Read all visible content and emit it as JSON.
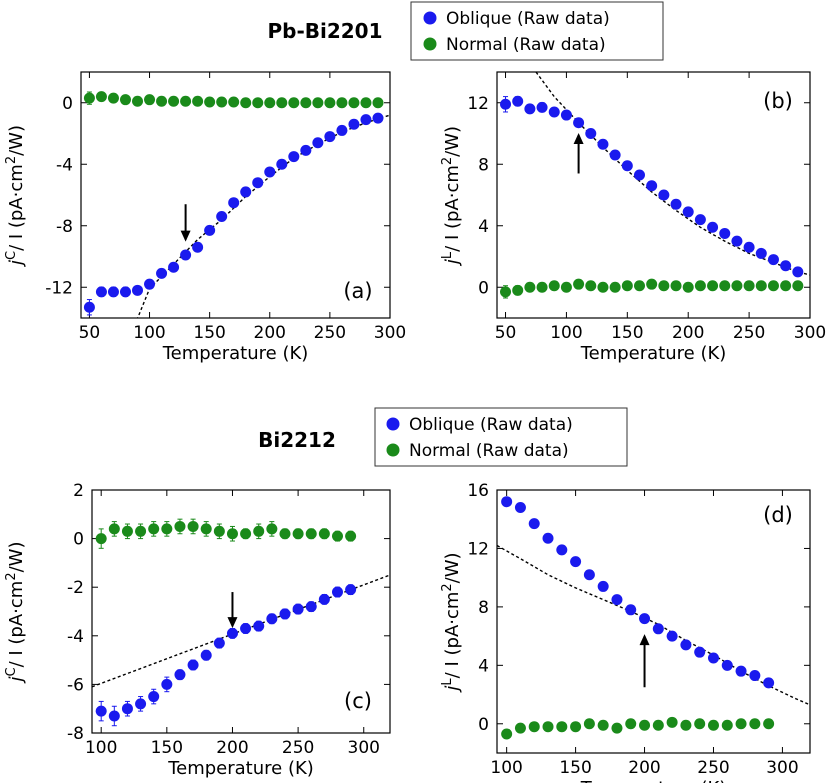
{
  "headers": [
    {
      "title": "Pb-Bi2201"
    },
    {
      "title": "Bi2212"
    }
  ],
  "legend": {
    "oblique_label": "Oblique (Raw data)",
    "normal_label": "Normal (Raw data)",
    "oblique_color": "#1a1aee",
    "normal_color": "#1a8a1a"
  },
  "chart_data": [
    {
      "type": "scatter",
      "panel_label": "(a)",
      "xlabel": "Temperature (K)",
      "ylabel_main": "j",
      "ylabel_sup": "C",
      "ylabel_rest": "/ I  (pA·cm",
      "ylabel_sup2": "2",
      "ylabel_end": "/W)",
      "xlim": [
        43,
        300
      ],
      "ylim": [
        -14,
        2
      ],
      "xticks": [
        50,
        100,
        150,
        200,
        250,
        300
      ],
      "yticks": [
        0,
        -4,
        -8,
        -12
      ],
      "arrow": {
        "x": 130,
        "y_start": -6.6,
        "y_end": -8.9,
        "direction": "down"
      },
      "fit_line": {
        "points": [
          [
            86,
            -14.8
          ],
          [
            100,
            -12.1
          ],
          [
            120,
            -10.5
          ],
          [
            140,
            -8.9
          ],
          [
            160,
            -7.6
          ],
          [
            180,
            -6.1
          ],
          [
            200,
            -4.8
          ],
          [
            220,
            -3.6
          ],
          [
            240,
            -2.7
          ],
          [
            260,
            -1.9
          ],
          [
            280,
            -1.3
          ],
          [
            300,
            -0.8
          ]
        ]
      },
      "series": [
        {
          "name": "Oblique (Raw data)",
          "color": "#1a1aee",
          "x": [
            50,
            60,
            70,
            80,
            90,
            100,
            110,
            120,
            130,
            140,
            150,
            160,
            170,
            180,
            190,
            200,
            210,
            220,
            230,
            240,
            250,
            260,
            270,
            280,
            290
          ],
          "y": [
            -13.3,
            -12.3,
            -12.3,
            -12.3,
            -12.2,
            -11.8,
            -11.1,
            -10.7,
            -9.9,
            -9.4,
            -8.3,
            -7.4,
            -6.5,
            -5.8,
            -5.2,
            -4.5,
            -4.0,
            -3.5,
            -3.1,
            -2.6,
            -2.2,
            -1.8,
            -1.4,
            -1.1,
            -1.0
          ],
          "err": [
            0.5,
            0.3,
            0.3,
            0.3,
            0.2,
            0.2,
            0.2,
            0.2,
            0.2,
            0.2,
            0.2,
            0.2,
            0.2,
            0.2,
            0.2,
            0.2,
            0.2,
            0.2,
            0.2,
            0.2,
            0.2,
            0.2,
            0.2,
            0.2,
            0.2
          ]
        },
        {
          "name": "Normal (Raw data)",
          "color": "#1a8a1a",
          "x": [
            50,
            60,
            70,
            80,
            90,
            100,
            110,
            120,
            130,
            140,
            150,
            160,
            170,
            180,
            190,
            200,
            210,
            220,
            230,
            240,
            250,
            260,
            270,
            280,
            290
          ],
          "y": [
            0.3,
            0.4,
            0.3,
            0.2,
            0.1,
            0.2,
            0.1,
            0.1,
            0.1,
            0.1,
            0.05,
            0.05,
            0.05,
            0.0,
            0.0,
            0.0,
            0.0,
            0.0,
            0.0,
            0.0,
            0.0,
            0.0,
            0.0,
            0.0,
            0.0
          ],
          "err": [
            0.4,
            0.2,
            0.2,
            0.2,
            0.2,
            0.2,
            0.2,
            0.2,
            0.2,
            0.2,
            0.2,
            0.2,
            0.2,
            0.2,
            0.2,
            0.2,
            0.2,
            0.2,
            0.2,
            0.2,
            0.2,
            0.2,
            0.2,
            0.2,
            0.2
          ]
        }
      ]
    },
    {
      "type": "scatter",
      "panel_label": "(b)",
      "xlabel": "Temperature (K)",
      "ylabel_main": "j",
      "ylabel_sup": "L",
      "ylabel_rest": "/ I  (pA·cm",
      "ylabel_sup2": "2",
      "ylabel_end": "/W)",
      "xlim": [
        43,
        300
      ],
      "ylim": [
        -2,
        14
      ],
      "xticks": [
        50,
        100,
        150,
        200,
        250,
        300
      ],
      "yticks": [
        0,
        4,
        8,
        12
      ],
      "arrow": {
        "x": 110,
        "y_start": 7.4,
        "y_end": 9.9,
        "direction": "up"
      },
      "fit_line": {
        "points": [
          [
            75,
            14.0
          ],
          [
            90,
            12.4
          ],
          [
            110,
            10.7
          ],
          [
            130,
            9.1
          ],
          [
            150,
            7.6
          ],
          [
            170,
            6.2
          ],
          [
            190,
            5.0
          ],
          [
            210,
            3.9
          ],
          [
            230,
            3.0
          ],
          [
            250,
            2.2
          ],
          [
            270,
            1.6
          ],
          [
            290,
            1.0
          ],
          [
            300,
            0.8
          ]
        ]
      },
      "series": [
        {
          "name": "Oblique (Raw data)",
          "color": "#1a1aee",
          "x": [
            50,
            60,
            70,
            80,
            90,
            100,
            110,
            120,
            130,
            140,
            150,
            160,
            170,
            180,
            190,
            200,
            210,
            220,
            230,
            240,
            250,
            260,
            270,
            280,
            290
          ],
          "y": [
            11.9,
            12.1,
            11.6,
            11.7,
            11.4,
            11.2,
            10.7,
            10.0,
            9.3,
            8.6,
            7.9,
            7.3,
            6.6,
            6.0,
            5.4,
            4.9,
            4.4,
            3.9,
            3.5,
            3.0,
            2.6,
            2.2,
            1.8,
            1.4,
            1.0
          ],
          "err": [
            0.5,
            0.3,
            0.2,
            0.3,
            0.2,
            0.2,
            0.2,
            0.2,
            0.2,
            0.2,
            0.2,
            0.2,
            0.2,
            0.2,
            0.2,
            0.2,
            0.2,
            0.2,
            0.2,
            0.2,
            0.2,
            0.2,
            0.2,
            0.2,
            0.2
          ]
        },
        {
          "name": "Normal (Raw data)",
          "color": "#1a8a1a",
          "x": [
            50,
            60,
            70,
            80,
            90,
            100,
            110,
            120,
            130,
            140,
            150,
            160,
            170,
            180,
            190,
            200,
            210,
            220,
            230,
            240,
            250,
            260,
            270,
            280,
            290
          ],
          "y": [
            -0.3,
            -0.2,
            0.0,
            0.0,
            0.1,
            0.0,
            0.2,
            0.1,
            0.0,
            0.0,
            0.1,
            0.1,
            0.2,
            0.1,
            0.1,
            0.0,
            0.1,
            0.1,
            0.1,
            0.1,
            0.1,
            0.1,
            0.1,
            0.1,
            0.1
          ],
          "err": [
            0.4,
            0.3,
            0.2,
            0.2,
            0.2,
            0.2,
            0.2,
            0.2,
            0.2,
            0.2,
            0.2,
            0.2,
            0.2,
            0.2,
            0.2,
            0.2,
            0.2,
            0.2,
            0.2,
            0.2,
            0.2,
            0.2,
            0.2,
            0.2,
            0.2
          ]
        }
      ]
    },
    {
      "type": "scatter",
      "panel_label": "(c)",
      "xlabel": "Temperature (K)",
      "ylabel_main": "j",
      "ylabel_sup": "C",
      "ylabel_rest": "/ I  (pA·cm",
      "ylabel_sup2": "2",
      "ylabel_end": "/W)",
      "xlim": [
        93,
        320
      ],
      "ylim": [
        -8,
        2
      ],
      "xticks": [
        100,
        150,
        200,
        250,
        300
      ],
      "yticks": [
        2,
        0,
        -2,
        -4,
        -6,
        -8
      ],
      "arrow": {
        "x": 200,
        "y_start": -2.2,
        "y_end": -3.6,
        "direction": "down"
      },
      "fit_line": {
        "points": [
          [
            93,
            -6.1
          ],
          [
            320,
            -1.5
          ]
        ]
      },
      "series": [
        {
          "name": "Oblique (Raw data)",
          "color": "#1a1aee",
          "x": [
            100,
            110,
            120,
            130,
            140,
            150,
            160,
            170,
            180,
            190,
            200,
            210,
            220,
            230,
            240,
            250,
            260,
            270,
            280,
            290
          ],
          "y": [
            -7.1,
            -7.3,
            -7.0,
            -6.8,
            -6.5,
            -6.0,
            -5.6,
            -5.2,
            -4.8,
            -4.3,
            -3.9,
            -3.7,
            -3.6,
            -3.3,
            -3.1,
            -2.9,
            -2.8,
            -2.5,
            -2.2,
            -2.1
          ],
          "err": [
            0.4,
            0.4,
            0.3,
            0.3,
            0.3,
            0.3,
            0.2,
            0.2,
            0.2,
            0.2,
            0.2,
            0.2,
            0.2,
            0.2,
            0.2,
            0.2,
            0.2,
            0.2,
            0.2,
            0.2
          ]
        },
        {
          "name": "Normal (Raw data)",
          "color": "#1a8a1a",
          "x": [
            100,
            110,
            120,
            130,
            140,
            150,
            160,
            170,
            180,
            190,
            200,
            210,
            220,
            230,
            240,
            250,
            260,
            270,
            280,
            290
          ],
          "y": [
            0.0,
            0.4,
            0.3,
            0.3,
            0.4,
            0.4,
            0.5,
            0.5,
            0.4,
            0.3,
            0.2,
            0.2,
            0.3,
            0.4,
            0.2,
            0.2,
            0.2,
            0.2,
            0.1,
            0.1
          ],
          "err": [
            0.4,
            0.3,
            0.3,
            0.3,
            0.3,
            0.3,
            0.3,
            0.3,
            0.3,
            0.3,
            0.3,
            0.2,
            0.3,
            0.3,
            0.2,
            0.2,
            0.2,
            0.2,
            0.2,
            0.2
          ]
        }
      ]
    },
    {
      "type": "scatter",
      "panel_label": "(d)",
      "xlabel": "Temperature (K)",
      "ylabel_main": "j",
      "ylabel_sup": "L",
      "ylabel_rest": "/ I  (pA·cm",
      "ylabel_sup2": "2",
      "ylabel_end": "/W)",
      "xlim": [
        93,
        320
      ],
      "ylim": [
        -2,
        16
      ],
      "xticks": [
        100,
        150,
        200,
        250,
        300
      ],
      "yticks": [
        16,
        12,
        8,
        4,
        0
      ],
      "arrow": {
        "x": 200,
        "y_start": 2.5,
        "y_end": 6.0,
        "direction": "up"
      },
      "fit_line": {
        "points": [
          [
            93,
            12.2
          ],
          [
            110,
            11.3
          ],
          [
            130,
            10.2
          ],
          [
            150,
            9.3
          ],
          [
            170,
            8.5
          ],
          [
            190,
            7.7
          ],
          [
            210,
            6.8
          ],
          [
            230,
            5.7
          ],
          [
            250,
            4.7
          ],
          [
            270,
            3.6
          ],
          [
            290,
            2.6
          ],
          [
            310,
            1.7
          ],
          [
            320,
            1.3
          ]
        ]
      },
      "series": [
        {
          "name": "Oblique (Raw data)",
          "color": "#1a1aee",
          "x": [
            100,
            110,
            120,
            130,
            140,
            150,
            160,
            170,
            180,
            190,
            200,
            210,
            220,
            230,
            240,
            250,
            260,
            270,
            280,
            290
          ],
          "y": [
            15.2,
            14.8,
            13.7,
            12.7,
            11.9,
            11.1,
            10.2,
            9.4,
            8.5,
            7.8,
            7.2,
            6.5,
            6.0,
            5.4,
            4.9,
            4.5,
            4.0,
            3.6,
            3.3,
            2.8
          ],
          "err": [
            0.2,
            0.2,
            0.2,
            0.2,
            0.2,
            0.2,
            0.2,
            0.2,
            0.2,
            0.2,
            0.2,
            0.2,
            0.2,
            0.2,
            0.2,
            0.2,
            0.2,
            0.2,
            0.2,
            0.2
          ]
        },
        {
          "name": "Normal (Raw data)",
          "color": "#1a8a1a",
          "x": [
            100,
            110,
            120,
            130,
            140,
            150,
            160,
            170,
            180,
            190,
            200,
            210,
            220,
            230,
            240,
            250,
            260,
            270,
            280,
            290
          ],
          "y": [
            -0.7,
            -0.3,
            -0.2,
            -0.2,
            -0.2,
            -0.2,
            0.0,
            -0.1,
            -0.3,
            0.0,
            -0.1,
            -0.1,
            0.1,
            -0.1,
            0.0,
            -0.1,
            -0.1,
            0.0,
            0.0,
            0.0
          ],
          "err": [
            0.3,
            0.2,
            0.2,
            0.2,
            0.2,
            0.2,
            0.2,
            0.2,
            0.2,
            0.2,
            0.2,
            0.2,
            0.2,
            0.2,
            0.2,
            0.2,
            0.2,
            0.2,
            0.2,
            0.2
          ]
        }
      ]
    }
  ]
}
